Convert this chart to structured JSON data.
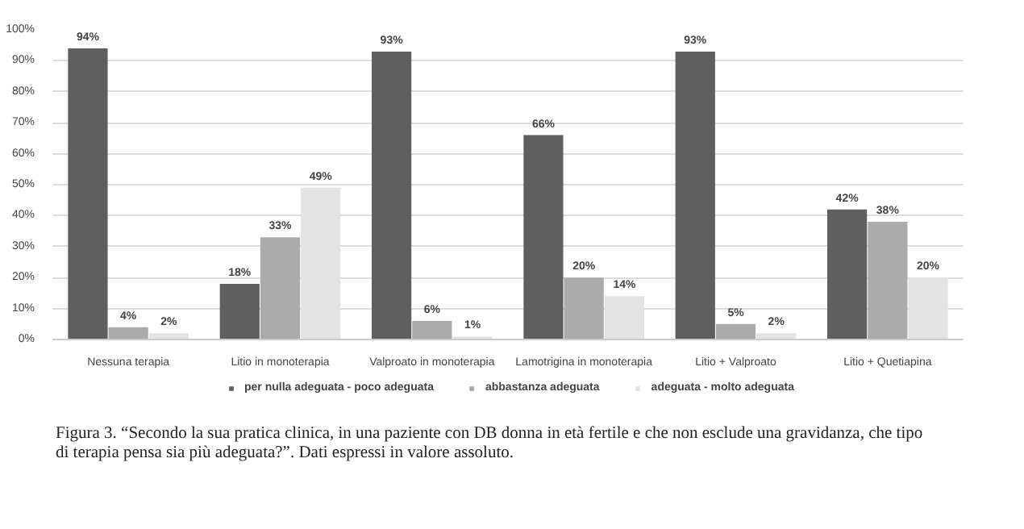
{
  "chart_data": {
    "type": "bar",
    "categories": [
      "Nessuna terapia",
      "Litio in monoterapia",
      "Valproato in monoterapia",
      "Lamotrigina in monoterapia",
      "Litio + Valproato",
      "Litio + Quetiapina"
    ],
    "series": [
      {
        "name": "per nulla adeguata - poco adeguata",
        "color": "#5f5f5f",
        "values": [
          94,
          18,
          93,
          66,
          93,
          42
        ],
        "value_labels": [
          "94%",
          "18%",
          "93%",
          "66%",
          "93%",
          "42%"
        ]
      },
      {
        "name": "abbastanza adeguata",
        "color": "#ababab",
        "values": [
          4,
          33,
          6,
          20,
          5,
          38
        ],
        "value_labels": [
          "4%",
          "33%",
          "6%",
          "20%",
          "5%",
          "38%"
        ]
      },
      {
        "name": "adeguata - molto adeguata",
        "color": "#e3e3e3",
        "values": [
          2,
          49,
          1,
          14,
          2,
          20
        ],
        "value_labels": [
          "2%",
          "49%",
          "1%",
          "14%",
          "2%",
          "20%"
        ]
      }
    ],
    "ylim": [
      0,
      100
    ],
    "yticks": [
      {
        "value": 0,
        "label": "0%"
      },
      {
        "value": 10,
        "label": "10%"
      },
      {
        "value": 20,
        "label": "20%"
      },
      {
        "value": 30,
        "label": "30%"
      },
      {
        "value": 40,
        "label": "40%"
      },
      {
        "value": 50,
        "label": "50%"
      },
      {
        "value": 60,
        "label": "60%"
      },
      {
        "value": 70,
        "label": "70%"
      },
      {
        "value": 80,
        "label": "80%"
      },
      {
        "value": 90,
        "label": "90%"
      },
      {
        "value": 100,
        "label": "100%"
      }
    ],
    "grid": "y",
    "legend": "bottom",
    "annotations": [
      "Figura 3. “Secondo la sua pratica clinica, in una paziente con DB donna in età fertile e che non esclude una gravidanza, che tipo di terapia pensa sia più adeguata?”. Dati espressi in valore assoluto."
    ]
  }
}
